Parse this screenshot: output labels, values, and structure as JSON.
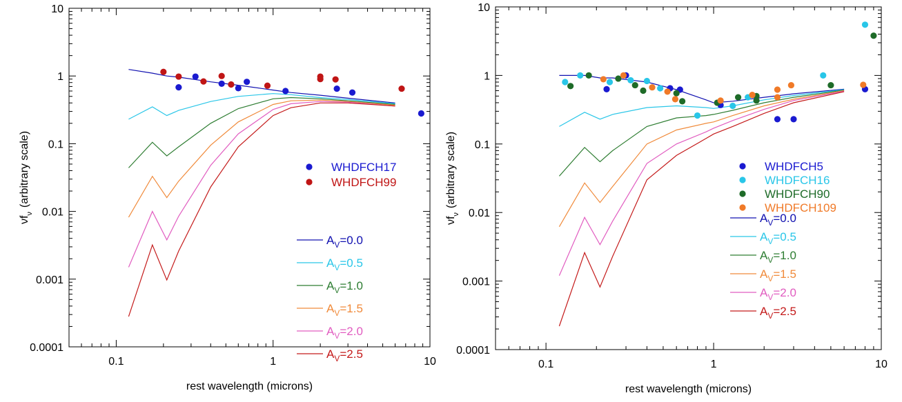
{
  "chart_data": [
    {
      "type": "scatter",
      "title": "",
      "xlabel": "rest wavelength (microns)",
      "ylabel": "νf",
      "ylabel_sub": "ν",
      "ylabel_rest": "(arbitrary scale)",
      "xscale": "log",
      "yscale": "log",
      "xlim": [
        0.05,
        10
      ],
      "ylim": [
        0.0001,
        10
      ],
      "x_ticks": [
        {
          "v": 0.1,
          "label": "0.1"
        },
        {
          "v": 1,
          "label": "1"
        },
        {
          "v": 10,
          "label": "10"
        }
      ],
      "y_ticks": [
        {
          "v": 0.0001,
          "label": "0.0001"
        },
        {
          "v": 0.001,
          "label": "0.001"
        },
        {
          "v": 0.01,
          "label": "0.01"
        },
        {
          "v": 0.1,
          "label": "0.1"
        },
        {
          "v": 1,
          "label": "1"
        },
        {
          "v": 10,
          "label": "10"
        }
      ],
      "grid": false,
      "legend": "right",
      "points": [
        {
          "name": "WHDFCH17",
          "color": "#1a1ad0",
          "x": [
            0.25,
            0.32,
            0.47,
            0.6,
            0.68,
            1.2,
            2.55,
            3.2,
            8.8
          ],
          "y": [
            0.68,
            0.98,
            0.77,
            0.66,
            0.82,
            0.6,
            0.65,
            0.57,
            0.28
          ]
        },
        {
          "name": "WHDFCH99",
          "color": "#c01515",
          "x": [
            0.2,
            0.25,
            0.36,
            0.47,
            0.54,
            0.92,
            2.0,
            2.0,
            2.5,
            6.6
          ],
          "y": [
            1.15,
            0.98,
            0.83,
            1.0,
            0.75,
            0.72,
            0.98,
            0.9,
            0.89,
            0.65
          ]
        }
      ],
      "curves": [
        {
          "name": "A_V=0.0",
          "label_main": "A",
          "label_sub": "V",
          "label_rest": "=0.0",
          "color": "#1010b0",
          "x": [
            0.12,
            0.17,
            0.21,
            0.25,
            0.4,
            0.6,
            1.0,
            1.3,
            2.0,
            3.0,
            6.0
          ],
          "y": [
            1.25,
            1.1,
            1.0,
            0.96,
            0.82,
            0.73,
            0.62,
            0.57,
            0.52,
            0.47,
            0.4
          ]
        },
        {
          "name": "A_V=0.5",
          "label_main": "A",
          "label_sub": "V",
          "label_rest": "=0.5",
          "color": "#29c6e8",
          "x": [
            0.12,
            0.17,
            0.21,
            0.25,
            0.4,
            0.6,
            1.0,
            1.3,
            2.0,
            3.0,
            6.0
          ],
          "y": [
            0.23,
            0.35,
            0.26,
            0.31,
            0.42,
            0.5,
            0.55,
            0.53,
            0.48,
            0.45,
            0.39
          ]
        },
        {
          "name": "A_V=1.0",
          "label_main": "A",
          "label_sub": "V",
          "label_rest": "=1.0",
          "color": "#2e7d32",
          "x": [
            0.12,
            0.17,
            0.21,
            0.25,
            0.4,
            0.6,
            1.0,
            1.3,
            2.0,
            3.0,
            6.0
          ],
          "y": [
            0.044,
            0.105,
            0.066,
            0.09,
            0.2,
            0.33,
            0.46,
            0.48,
            0.46,
            0.43,
            0.38
          ]
        },
        {
          "name": "A_V=1.5",
          "label_main": "A",
          "label_sub": "V",
          "label_rest": "=1.5",
          "color": "#f08a3a",
          "x": [
            0.12,
            0.17,
            0.21,
            0.25,
            0.4,
            0.6,
            1.0,
            1.3,
            2.0,
            3.0,
            6.0
          ],
          "y": [
            0.0082,
            0.033,
            0.016,
            0.028,
            0.095,
            0.21,
            0.38,
            0.43,
            0.44,
            0.42,
            0.37
          ]
        },
        {
          "name": "A_V=2.0",
          "label_main": "A",
          "label_sub": "V",
          "label_rest": "=2.0",
          "color": "#e15cc0",
          "x": [
            0.12,
            0.17,
            0.21,
            0.25,
            0.4,
            0.6,
            1.0,
            1.3,
            2.0,
            3.0,
            6.0
          ],
          "y": [
            0.0015,
            0.01,
            0.0038,
            0.0085,
            0.048,
            0.14,
            0.32,
            0.39,
            0.42,
            0.41,
            0.36
          ]
        },
        {
          "name": "A_V=2.5",
          "label_main": "A",
          "label_sub": "V",
          "label_rest": "=2.5",
          "color": "#c41a1a",
          "x": [
            0.12,
            0.17,
            0.21,
            0.25,
            0.4,
            0.6,
            1.0,
            1.3,
            2.0,
            3.0,
            6.0
          ],
          "y": [
            0.00028,
            0.0032,
            0.00097,
            0.0026,
            0.023,
            0.09,
            0.26,
            0.34,
            0.4,
            0.4,
            0.36
          ]
        }
      ]
    },
    {
      "type": "scatter",
      "title": "",
      "xlabel": "rest wavelength (microns)",
      "ylabel": "νf",
      "ylabel_sub": "ν",
      "ylabel_rest": "(arbitrary scale)",
      "xscale": "log",
      "yscale": "log",
      "xlim": [
        0.05,
        10
      ],
      "ylim": [
        0.0001,
        10
      ],
      "x_ticks": [
        {
          "v": 0.1,
          "label": "0.1"
        },
        {
          "v": 1,
          "label": "1"
        },
        {
          "v": 10,
          "label": "10"
        }
      ],
      "y_ticks": [
        {
          "v": 0.0001,
          "label": "0.0001"
        },
        {
          "v": 0.001,
          "label": "0.001"
        },
        {
          "v": 0.01,
          "label": "0.01"
        },
        {
          "v": 0.1,
          "label": "0.1"
        },
        {
          "v": 1,
          "label": "1"
        },
        {
          "v": 10,
          "label": "10"
        }
      ],
      "grid": false,
      "legend": "right",
      "points": [
        {
          "name": "WHDFCH5",
          "color": "#1a1ad0",
          "x": [
            0.23,
            0.3,
            0.55,
            0.63,
            1.1,
            2.4,
            3.0,
            8.0
          ],
          "y": [
            0.63,
            1.0,
            0.65,
            0.62,
            0.37,
            0.23,
            0.23,
            0.63
          ]
        },
        {
          "name": "WHDFCH16",
          "color": "#29c6e8",
          "x": [
            0.13,
            0.16,
            0.24,
            0.32,
            0.4,
            0.48,
            0.8,
            1.3,
            1.6,
            4.5,
            8.0
          ],
          "y": [
            0.8,
            1.0,
            0.8,
            0.85,
            0.83,
            0.65,
            0.26,
            0.36,
            0.48,
            1.0,
            5.5
          ]
        },
        {
          "name": "WHDFCH90",
          "color": "#1e6b28",
          "x": [
            0.14,
            0.18,
            0.27,
            0.34,
            0.38,
            0.6,
            0.65,
            1.05,
            1.4,
            1.8,
            1.8,
            5.0,
            9.0
          ],
          "y": [
            0.7,
            1.0,
            0.9,
            0.72,
            0.6,
            0.55,
            0.42,
            0.4,
            0.48,
            0.5,
            0.43,
            0.72,
            3.8
          ]
        },
        {
          "name": "WHDFCH109",
          "color": "#f07a28",
          "x": [
            0.22,
            0.29,
            0.43,
            0.53,
            0.59,
            1.1,
            1.7,
            2.4,
            2.4,
            2.9,
            7.8
          ],
          "y": [
            0.88,
            1.0,
            0.67,
            0.58,
            0.45,
            0.43,
            0.52,
            0.62,
            0.48,
            0.72,
            0.73
          ]
        }
      ],
      "curves": [
        {
          "name": "A_V=0.0",
          "label_main": "A",
          "label_sub": "V",
          "label_rest": "=0.0",
          "color": "#1010b0",
          "x": [
            0.12,
            0.17,
            0.21,
            0.25,
            0.4,
            0.6,
            0.9,
            1.0,
            1.3,
            2.0,
            3.0,
            6.0
          ],
          "y": [
            1.0,
            1.0,
            0.92,
            0.92,
            0.8,
            0.62,
            0.44,
            0.4,
            0.42,
            0.48,
            0.54,
            0.63
          ]
        },
        {
          "name": "A_V=0.5",
          "label_main": "A",
          "label_sub": "V",
          "label_rest": "=0.5",
          "color": "#29c6e8",
          "x": [
            0.12,
            0.17,
            0.21,
            0.25,
            0.4,
            0.6,
            0.9,
            1.0,
            1.3,
            2.0,
            3.0,
            6.0
          ],
          "y": [
            0.18,
            0.29,
            0.23,
            0.27,
            0.34,
            0.36,
            0.34,
            0.33,
            0.36,
            0.44,
            0.51,
            0.62
          ]
        },
        {
          "name": "A_V=1.0",
          "label_main": "A",
          "label_sub": "V",
          "label_rest": "=1.0",
          "color": "#2e7d32",
          "x": [
            0.12,
            0.17,
            0.21,
            0.25,
            0.4,
            0.6,
            0.9,
            1.0,
            1.3,
            2.0,
            3.0,
            6.0
          ],
          "y": [
            0.034,
            0.089,
            0.055,
            0.08,
            0.18,
            0.24,
            0.26,
            0.27,
            0.31,
            0.4,
            0.48,
            0.61
          ]
        },
        {
          "name": "A_V=1.5",
          "label_main": "A",
          "label_sub": "V",
          "label_rest": "=1.5",
          "color": "#f08a3a",
          "x": [
            0.12,
            0.17,
            0.21,
            0.25,
            0.4,
            0.6,
            0.9,
            1.0,
            1.3,
            2.0,
            3.0,
            6.0
          ],
          "y": [
            0.0062,
            0.027,
            0.014,
            0.024,
            0.1,
            0.16,
            0.2,
            0.21,
            0.26,
            0.36,
            0.45,
            0.6
          ]
        },
        {
          "name": "A_V=2.0",
          "label_main": "A",
          "label_sub": "V",
          "label_rest": "=2.0",
          "color": "#e15cc0",
          "x": [
            0.12,
            0.17,
            0.21,
            0.25,
            0.4,
            0.6,
            0.9,
            1.0,
            1.3,
            2.0,
            3.0,
            6.0
          ],
          "y": [
            0.0012,
            0.0085,
            0.0034,
            0.0075,
            0.052,
            0.1,
            0.15,
            0.17,
            0.22,
            0.32,
            0.43,
            0.59
          ]
        },
        {
          "name": "A_V=2.5",
          "label_main": "A",
          "label_sub": "V",
          "label_rest": "=2.5",
          "color": "#c41a1a",
          "x": [
            0.12,
            0.17,
            0.21,
            0.25,
            0.4,
            0.6,
            0.9,
            1.0,
            1.3,
            2.0,
            3.0,
            6.0
          ],
          "y": [
            0.00022,
            0.0026,
            0.00082,
            0.0023,
            0.03,
            0.068,
            0.12,
            0.14,
            0.18,
            0.28,
            0.4,
            0.58
          ]
        }
      ]
    }
  ]
}
